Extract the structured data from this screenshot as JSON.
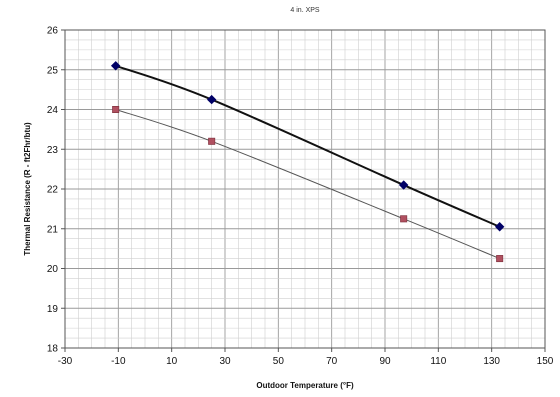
{
  "chart_data": {
    "type": "scatter",
    "title": "4 in. XPS",
    "xlabel": "Outdoor Temperature (°F)",
    "ylabel": "Thermal Resistance (R - ft2Fhr/btu)",
    "xlim": [
      -30,
      150
    ],
    "ylim": [
      18,
      26
    ],
    "x_ticks": [
      -30,
      -10,
      10,
      30,
      50,
      70,
      90,
      110,
      130,
      150
    ],
    "y_ticks": [
      18,
      19,
      20,
      21,
      22,
      23,
      24,
      25,
      26
    ],
    "grid": true,
    "legend": "none",
    "series": [
      {
        "color": "#000066",
        "line_color": "#111111",
        "marker": "diamond",
        "points": [
          {
            "x": -11,
            "y": 25.1
          },
          {
            "x": 25,
            "y": 24.25
          },
          {
            "x": 97,
            "y": 22.1
          },
          {
            "x": 133,
            "y": 21.05
          }
        ]
      },
      {
        "color": "#b05060",
        "line_color": "#555555",
        "marker": "square",
        "points": [
          {
            "x": -11,
            "y": 24.0
          },
          {
            "x": 25,
            "y": 23.2
          },
          {
            "x": 97,
            "y": 21.25
          },
          {
            "x": 133,
            "y": 20.25
          }
        ]
      }
    ]
  }
}
